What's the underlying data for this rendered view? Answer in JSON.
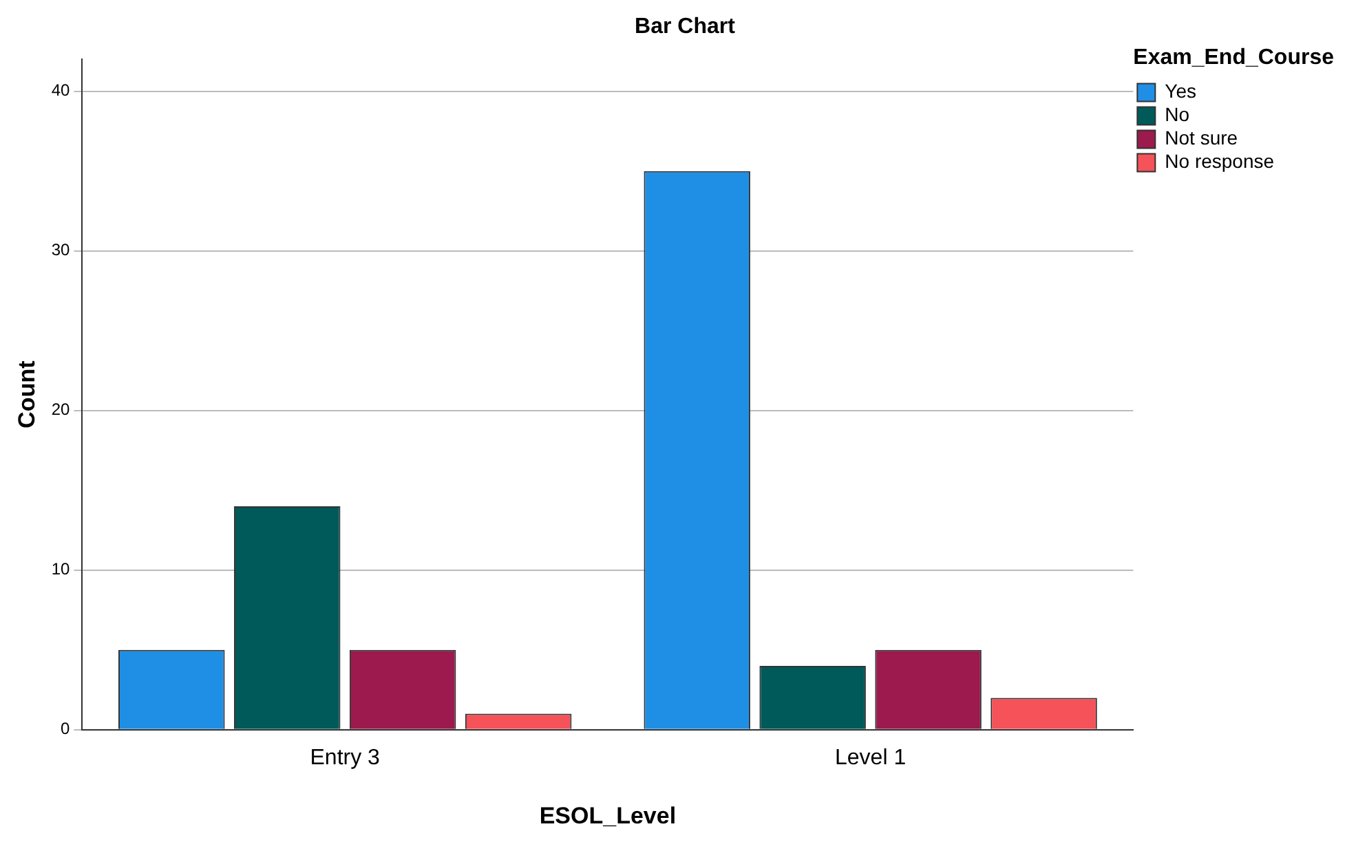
{
  "chart_data": {
    "type": "bar",
    "title": "Bar Chart",
    "xlabel": "ESOL_Level",
    "ylabel": "Count",
    "legend_title": "Exam_End_Course",
    "categories": [
      "Entry 3",
      "Level 1"
    ],
    "series": [
      {
        "name": "Yes",
        "color": "#1f8fe6",
        "values": [
          5,
          35
        ]
      },
      {
        "name": "No",
        "color": "#005a5a",
        "values": [
          14,
          4
        ]
      },
      {
        "name": "Not sure",
        "color": "#9c1a4d",
        "values": [
          5,
          5
        ]
      },
      {
        "name": "No response",
        "color": "#f5525a",
        "values": [
          1,
          2
        ]
      }
    ],
    "ylim": [
      0,
      42
    ],
    "yticks": [
      0,
      10,
      20,
      30,
      40
    ],
    "grid": "y",
    "legend": "top right"
  }
}
